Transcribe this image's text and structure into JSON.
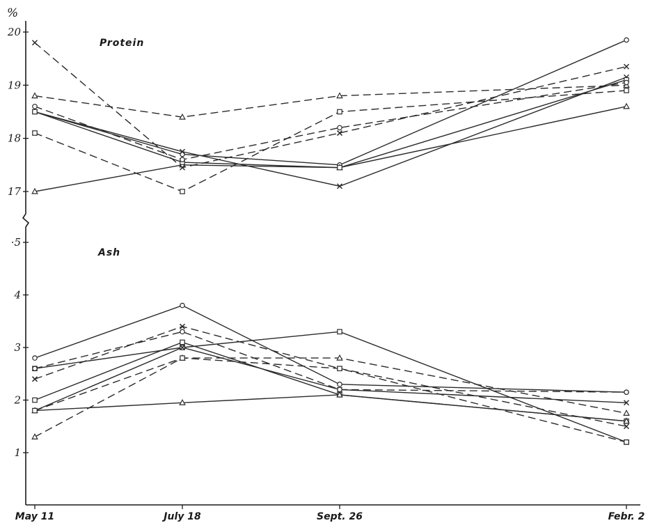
{
  "chart_data": [
    {
      "type": "line",
      "title": "Protein",
      "unit": "%",
      "categories": [
        "May 11",
        "July 18",
        "Sept. 26",
        "Febr. 2"
      ],
      "ylim": [
        16.75,
        20.2
      ],
      "yticks": [
        {
          "value": 17,
          "label": "17"
        },
        {
          "value": 18,
          "label": "18"
        },
        {
          "value": 19,
          "label": "19"
        },
        {
          "value": 20,
          "label": "20"
        }
      ],
      "grid": false,
      "legend": "none",
      "series": [
        {
          "marker": "circle",
          "dash": "solid",
          "values": [
            18.5,
            17.7,
            17.5,
            19.85
          ]
        },
        {
          "marker": "triangle",
          "dash": "solid",
          "values": [
            17.0,
            17.5,
            17.45,
            18.6
          ]
        },
        {
          "marker": "cross",
          "dash": "solid",
          "values": [
            18.5,
            17.75,
            17.1,
            19.15
          ]
        },
        {
          "marker": "square",
          "dash": "solid",
          "values": [
            18.5,
            17.55,
            17.45,
            19.1
          ]
        },
        {
          "marker": "triangle",
          "dash": "dashed",
          "values": [
            18.8,
            18.4,
            18.8,
            19.0
          ]
        },
        {
          "marker": "cross",
          "dash": "dashed",
          "values": [
            19.8,
            17.45,
            18.1,
            19.35
          ]
        },
        {
          "marker": "circle",
          "dash": "dashed",
          "values": [
            18.6,
            17.6,
            18.2,
            19.05
          ]
        },
        {
          "marker": "square",
          "dash": "dashed",
          "values": [
            18.1,
            17.0,
            18.5,
            18.9
          ]
        }
      ]
    },
    {
      "type": "line",
      "title": "Ash",
      "categories": [
        "May 11",
        "July 18",
        "Sept. 26",
        "Febr. 2"
      ],
      "ylim": [
        0.2,
        5.1
      ],
      "yticks": [
        {
          "value": 1,
          "label": "1"
        },
        {
          "value": 2,
          "label": "2"
        },
        {
          "value": 3,
          "label": "3"
        },
        {
          "value": 4,
          "label": "4"
        },
        {
          "value": 5,
          "label": "·5"
        }
      ],
      "grid": false,
      "legend": "none",
      "series": [
        {
          "marker": "circle",
          "dash": "solid",
          "values": [
            2.8,
            3.8,
            2.3,
            2.15
          ]
        },
        {
          "marker": "square",
          "dash": "solid",
          "values": [
            2.6,
            3.0,
            3.3,
            1.2
          ]
        },
        {
          "marker": "square",
          "dash": "solid",
          "values": [
            2.0,
            3.1,
            2.1,
            1.6
          ]
        },
        {
          "marker": "triangle",
          "dash": "solid",
          "values": [
            1.8,
            1.95,
            2.1,
            1.6
          ]
        },
        {
          "marker": "cross",
          "dash": "solid",
          "values": [
            1.8,
            3.0,
            2.2,
            1.95
          ]
        },
        {
          "marker": "cross",
          "dash": "dashed",
          "values": [
            2.4,
            3.4,
            2.6,
            1.5
          ]
        },
        {
          "marker": "circle",
          "dash": "dashed",
          "values": [
            2.6,
            3.3,
            2.2,
            2.15
          ]
        },
        {
          "marker": "triangle",
          "dash": "dashed",
          "values": [
            1.3,
            2.8,
            2.8,
            1.75
          ]
        },
        {
          "marker": "square",
          "dash": "dashed",
          "values": [
            1.8,
            2.8,
            2.6,
            1.2
          ]
        }
      ]
    }
  ]
}
